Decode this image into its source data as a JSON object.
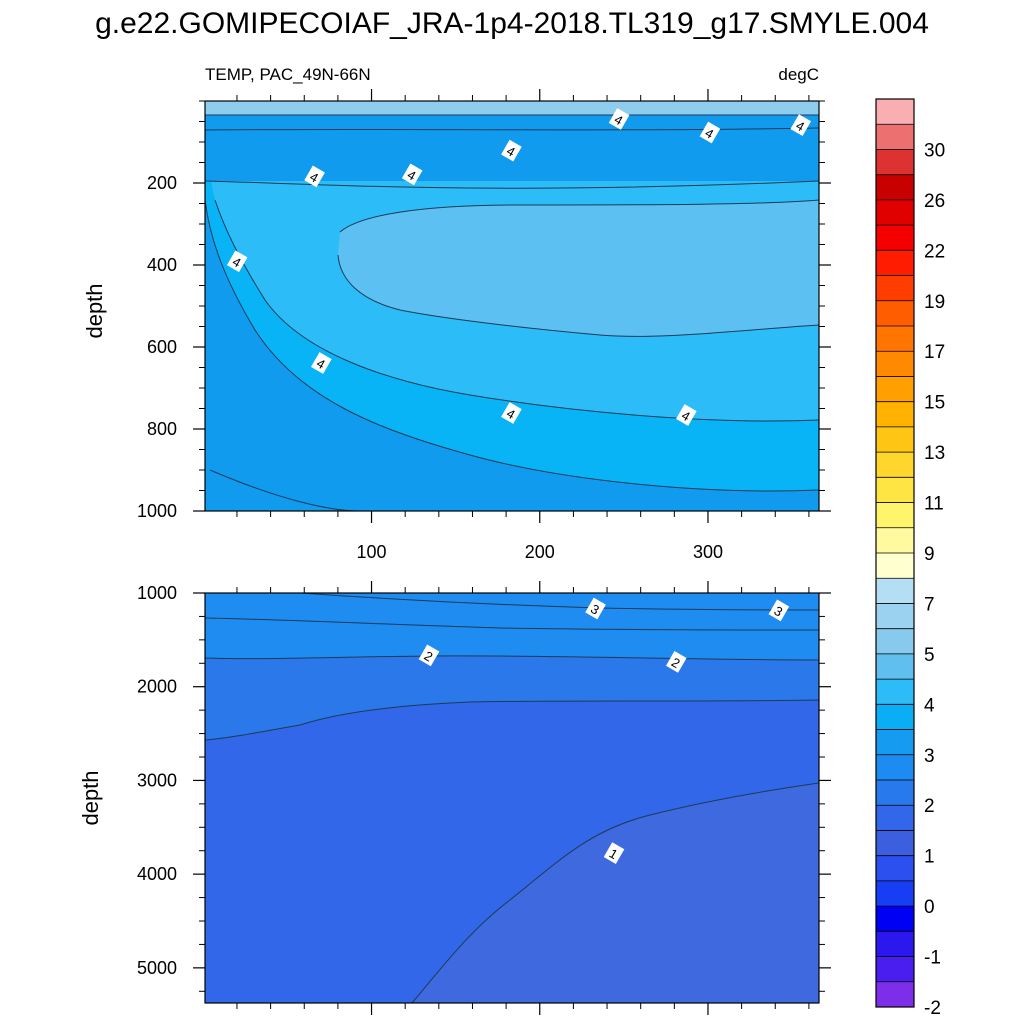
{
  "title": "g.e22.GOMIPECOIAF_JRA-1p4-2018.TL319_g17.SMYLE.004",
  "colors": {
    "fill_p4": "#5cc1f2",
    "fill_p35": "#2cbcf8",
    "fill_p3": "#08b4f6",
    "fill_p25": "#109bef",
    "fill_p2": "#1f8cf2",
    "fill_p15": "#2b78ea",
    "fill_p1": "#3167e8",
    "fill_p05": "#3f69df",
    "fill_surf": "#8fcdee",
    "contour": "#1e3a55",
    "frame": "#000000"
  },
  "chart_data": [
    {
      "type": "contour",
      "title_left": "TEMP, PAC_49N-66N",
      "title_right": "degC",
      "xlabel": "",
      "ylabel": "depth",
      "xlim": [
        1,
        366
      ],
      "ylim": [
        1000,
        0
      ],
      "xticks": [
        "100",
        "200",
        "300"
      ],
      "xtick_values": [
        100,
        200,
        300
      ],
      "yticks": [
        "200",
        "400",
        "600",
        "800",
        "1000"
      ],
      "ytick_values": [
        200,
        400,
        600,
        800,
        1000
      ],
      "contour_labels": [
        {
          "text": "4",
          "x": 66,
          "y": 185
        },
        {
          "text": "4",
          "x": 124,
          "y": 180
        },
        {
          "text": "4",
          "x": 183,
          "y": 122
        },
        {
          "text": "4",
          "x": 247,
          "y": 45
        },
        {
          "text": "4",
          "x": 301,
          "y": 78
        },
        {
          "text": "4",
          "x": 355,
          "y": 60
        },
        {
          "text": "4",
          "x": 20,
          "y": 392
        },
        {
          "text": "4",
          "x": 70,
          "y": 640
        },
        {
          "text": "4",
          "x": 183,
          "y": 762
        },
        {
          "text": "4",
          "x": 287,
          "y": 767
        }
      ]
    },
    {
      "type": "contour",
      "xlabel": "",
      "ylabel": "depth",
      "xlim": [
        1,
        366
      ],
      "ylim": [
        5375,
        1000
      ],
      "xtick_values": [
        100,
        200,
        300
      ],
      "yticks": [
        "1000",
        "2000",
        "3000",
        "4000",
        "5000"
      ],
      "ytick_values": [
        1000,
        2000,
        3000,
        4000,
        5000
      ],
      "contour_labels": [
        {
          "text": "3",
          "x": 233,
          "y": 1170
        },
        {
          "text": "3",
          "x": 342,
          "y": 1190
        },
        {
          "text": "2",
          "x": 134,
          "y": 1670
        },
        {
          "text": "2",
          "x": 281,
          "y": 1740
        },
        {
          "text": "1",
          "x": 244,
          "y": 3780
        }
      ]
    }
  ],
  "colorbar": {
    "labels": [
      "30",
      "26",
      "22",
      "19",
      "17",
      "15",
      "13",
      "11",
      "9",
      "7",
      "5",
      "4",
      "3",
      "2",
      "1",
      "0",
      "-1",
      "-2"
    ],
    "colors": [
      "#f9aeb1",
      "#ec7070",
      "#dd3232",
      "#c80000",
      "#e00000",
      "#f40000",
      "#ff1c00",
      "#ff3d00",
      "#ff5d00",
      "#ff7500",
      "#ff8900",
      "#ffa000",
      "#ffb300",
      "#ffc514",
      "#ffd62c",
      "#ffe544",
      "#fff56c",
      "#fff9a0",
      "#ffffd0",
      "#b4def3",
      "#9ad2f0",
      "#88c9ee",
      "#60bfef",
      "#2ebcf8",
      "#0aaef5",
      "#159cf1",
      "#1d8cf2",
      "#2879ec",
      "#3167e8",
      "#3c5fe0",
      "#2c4ff0",
      "#183ef5",
      "#0000f5",
      "#2a18ef",
      "#4b1ef0",
      "#7d2ee8"
    ]
  }
}
